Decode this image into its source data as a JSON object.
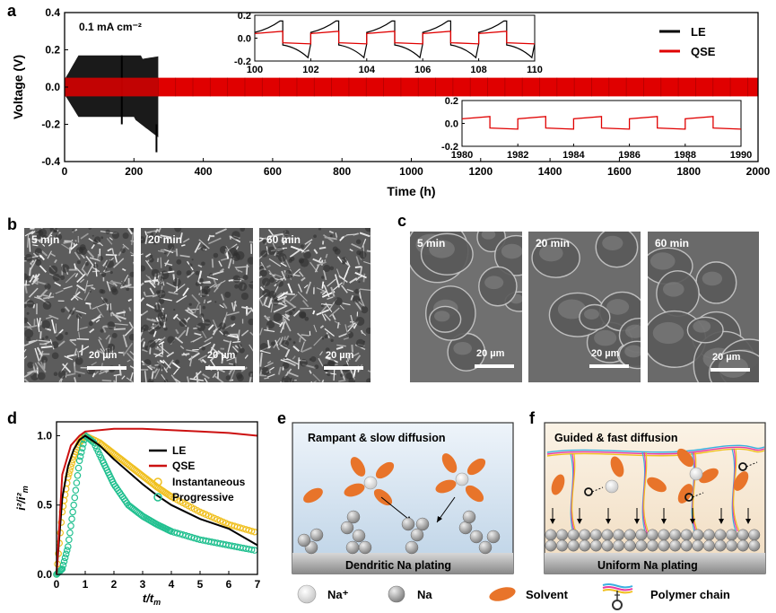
{
  "panels": {
    "a": "a",
    "b": "b",
    "c": "c",
    "d": "d",
    "e": "e",
    "f": "f"
  },
  "chart_data": [
    {
      "type": "line",
      "title": "",
      "annotation": "0.1 mA cm⁻²",
      "xlabel": "Time (h)",
      "ylabel": "Voltage (V)",
      "xlim": [
        0,
        2000
      ],
      "ylim": [
        -0.4,
        0.4
      ],
      "xticks": [
        "0",
        "200",
        "400",
        "600",
        "800",
        "1000",
        "1200",
        "1400",
        "1600",
        "1800",
        "2000"
      ],
      "yticks": [
        "-0.4",
        "-0.2",
        "0.0",
        "0.2",
        "0.4"
      ],
      "series": [
        {
          "name": "LE",
          "color": "#000000",
          "x_range": [
            0,
            270
          ],
          "amplitude_max": 0.17,
          "amplitude_min": -0.35
        },
        {
          "name": "QSE",
          "color": "#e00000",
          "x_range": [
            0,
            2000
          ],
          "amplitude": 0.05
        }
      ],
      "inset1": {
        "xlim": [
          100,
          110
        ],
        "ylim": [
          -0.2,
          0.2
        ],
        "xticks": [
          "100",
          "102",
          "104",
          "106",
          "108",
          "110"
        ],
        "yticks": [
          "-0.2",
          "0.0",
          "0.2"
        ]
      },
      "inset2": {
        "xlim": [
          1980,
          1990
        ],
        "ylim": [
          -0.2,
          0.2
        ],
        "xticks": [
          "1980",
          "1982",
          "1984",
          "1986",
          "1988",
          "1990"
        ],
        "yticks": [
          "-0.2",
          "0.0",
          "0.2"
        ]
      }
    },
    {
      "type": "line",
      "xlabel": "t/t",
      "xlabel_sub": "m",
      "ylabel": "i²/i²",
      "ylabel_sub": "m",
      "xlim": [
        0,
        7
      ],
      "ylim": [
        0,
        1.1
      ],
      "xticks": [
        "0",
        "1",
        "2",
        "3",
        "4",
        "5",
        "6",
        "7"
      ],
      "yticks": [
        "0.0",
        "0.5",
        "1.0"
      ],
      "series": [
        {
          "name": "LE",
          "color": "#000000",
          "x": [
            0,
            0.2,
            0.4,
            0.6,
            0.8,
            1.0,
            1.5,
            2,
            2.5,
            3,
            3.5,
            4,
            5,
            6,
            7
          ],
          "y": [
            0,
            0.55,
            0.78,
            0.9,
            0.97,
            1.0,
            0.93,
            0.83,
            0.74,
            0.65,
            0.57,
            0.5,
            0.4,
            0.33,
            0.21
          ]
        },
        {
          "name": "QSE",
          "color": "#cc1111",
          "x": [
            0,
            0.2,
            0.5,
            0.8,
            1.0,
            2,
            3,
            4,
            5,
            6,
            7
          ],
          "y": [
            0,
            0.72,
            0.93,
            1.0,
            1.03,
            1.05,
            1.05,
            1.04,
            1.03,
            1.02,
            1.0
          ]
        },
        {
          "name": "Instantaneous",
          "color": "#f0c020",
          "marker": "circle",
          "x": [
            0,
            0.2,
            0.4,
            0.6,
            0.8,
            1.0,
            1.5,
            2,
            2.5,
            3,
            3.5,
            4,
            5,
            6,
            7
          ],
          "y": [
            0,
            0.45,
            0.7,
            0.85,
            0.95,
            1.0,
            0.95,
            0.87,
            0.79,
            0.71,
            0.63,
            0.56,
            0.45,
            0.36,
            0.3
          ]
        },
        {
          "name": "Progressive",
          "color": "#22c090",
          "marker": "circle",
          "x": [
            0,
            0.2,
            0.4,
            0.6,
            0.8,
            1.0,
            1.3,
            1.6,
            2,
            2.5,
            3,
            3.5,
            4,
            5,
            6,
            7
          ],
          "y": [
            0,
            0.04,
            0.2,
            0.5,
            0.82,
            1.0,
            0.95,
            0.82,
            0.65,
            0.5,
            0.42,
            0.36,
            0.31,
            0.25,
            0.21,
            0.17
          ]
        }
      ]
    }
  ],
  "sem_b": {
    "labels": [
      "5 min",
      "20 min",
      "60 min"
    ],
    "scale": "20 µm"
  },
  "sem_c": {
    "labels": [
      "5 min",
      "20 min",
      "60 min"
    ],
    "scale": "20 µm"
  },
  "schematic_e": {
    "title": "Rampant & slow diffusion",
    "caption": "Dendritic Na plating"
  },
  "schematic_f": {
    "title": "Guided & fast diffusion",
    "caption": "Uniform Na plating"
  },
  "legend_bottom": {
    "na_plus": "Na⁺",
    "na": "Na",
    "solvent": "Solvent",
    "polymer": "Polymer chain"
  },
  "colors": {
    "le": "#000000",
    "qse": "#e00000",
    "instantaneous": "#f0c020",
    "progressive": "#22c090",
    "solvent": "#e8742a"
  }
}
